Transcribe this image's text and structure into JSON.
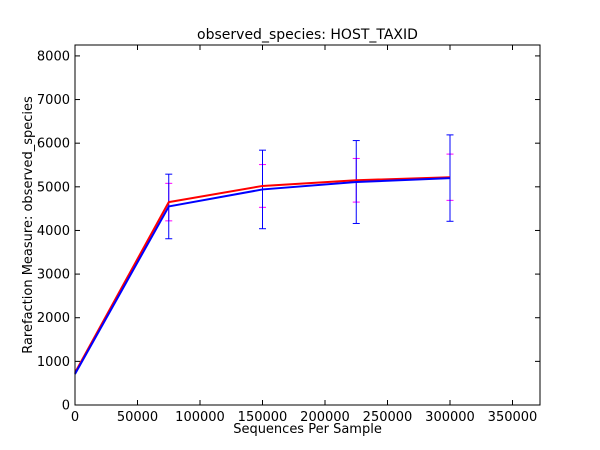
{
  "chart_data": {
    "type": "line",
    "title": "observed_species: HOST_TAXID",
    "xlabel": "Sequences Per Sample",
    "ylabel": "Rarefaction Measure: observed_species",
    "xlim": [
      0,
      372000
    ],
    "ylim": [
      0,
      8250
    ],
    "x_ticks": [
      "0",
      "50000",
      "100000",
      "150000",
      "200000",
      "250000",
      "300000",
      "350000"
    ],
    "x_tick_values": [
      0,
      50000,
      100000,
      150000,
      200000,
      250000,
      300000,
      350000
    ],
    "y_ticks": [
      "0",
      "1000",
      "2000",
      "3000",
      "4000",
      "5000",
      "6000",
      "7000",
      "8000"
    ],
    "y_tick_values": [
      0,
      1000,
      2000,
      3000,
      4000,
      5000,
      6000,
      7000,
      8000
    ],
    "grid": false,
    "series": [
      {
        "color": "#ff0000",
        "errorbar_color": "#ff00ff",
        "points": [
          {
            "x": 0,
            "y": 740,
            "err": 0
          },
          {
            "x": 75000,
            "y": 4650,
            "err": 430
          },
          {
            "x": 150000,
            "y": 5020,
            "err": 490
          },
          {
            "x": 225000,
            "y": 5150,
            "err": 500
          },
          {
            "x": 300000,
            "y": 5220,
            "err": 530
          }
        ]
      },
      {
        "color": "#0000ff",
        "errorbar_color": "#0000ff",
        "points": [
          {
            "x": 0,
            "y": 710,
            "err": 0
          },
          {
            "x": 75000,
            "y": 4550,
            "err": 740
          },
          {
            "x": 150000,
            "y": 4940,
            "err": 900
          },
          {
            "x": 225000,
            "y": 5110,
            "err": 950
          },
          {
            "x": 300000,
            "y": 5200,
            "err": 990
          }
        ]
      }
    ]
  }
}
